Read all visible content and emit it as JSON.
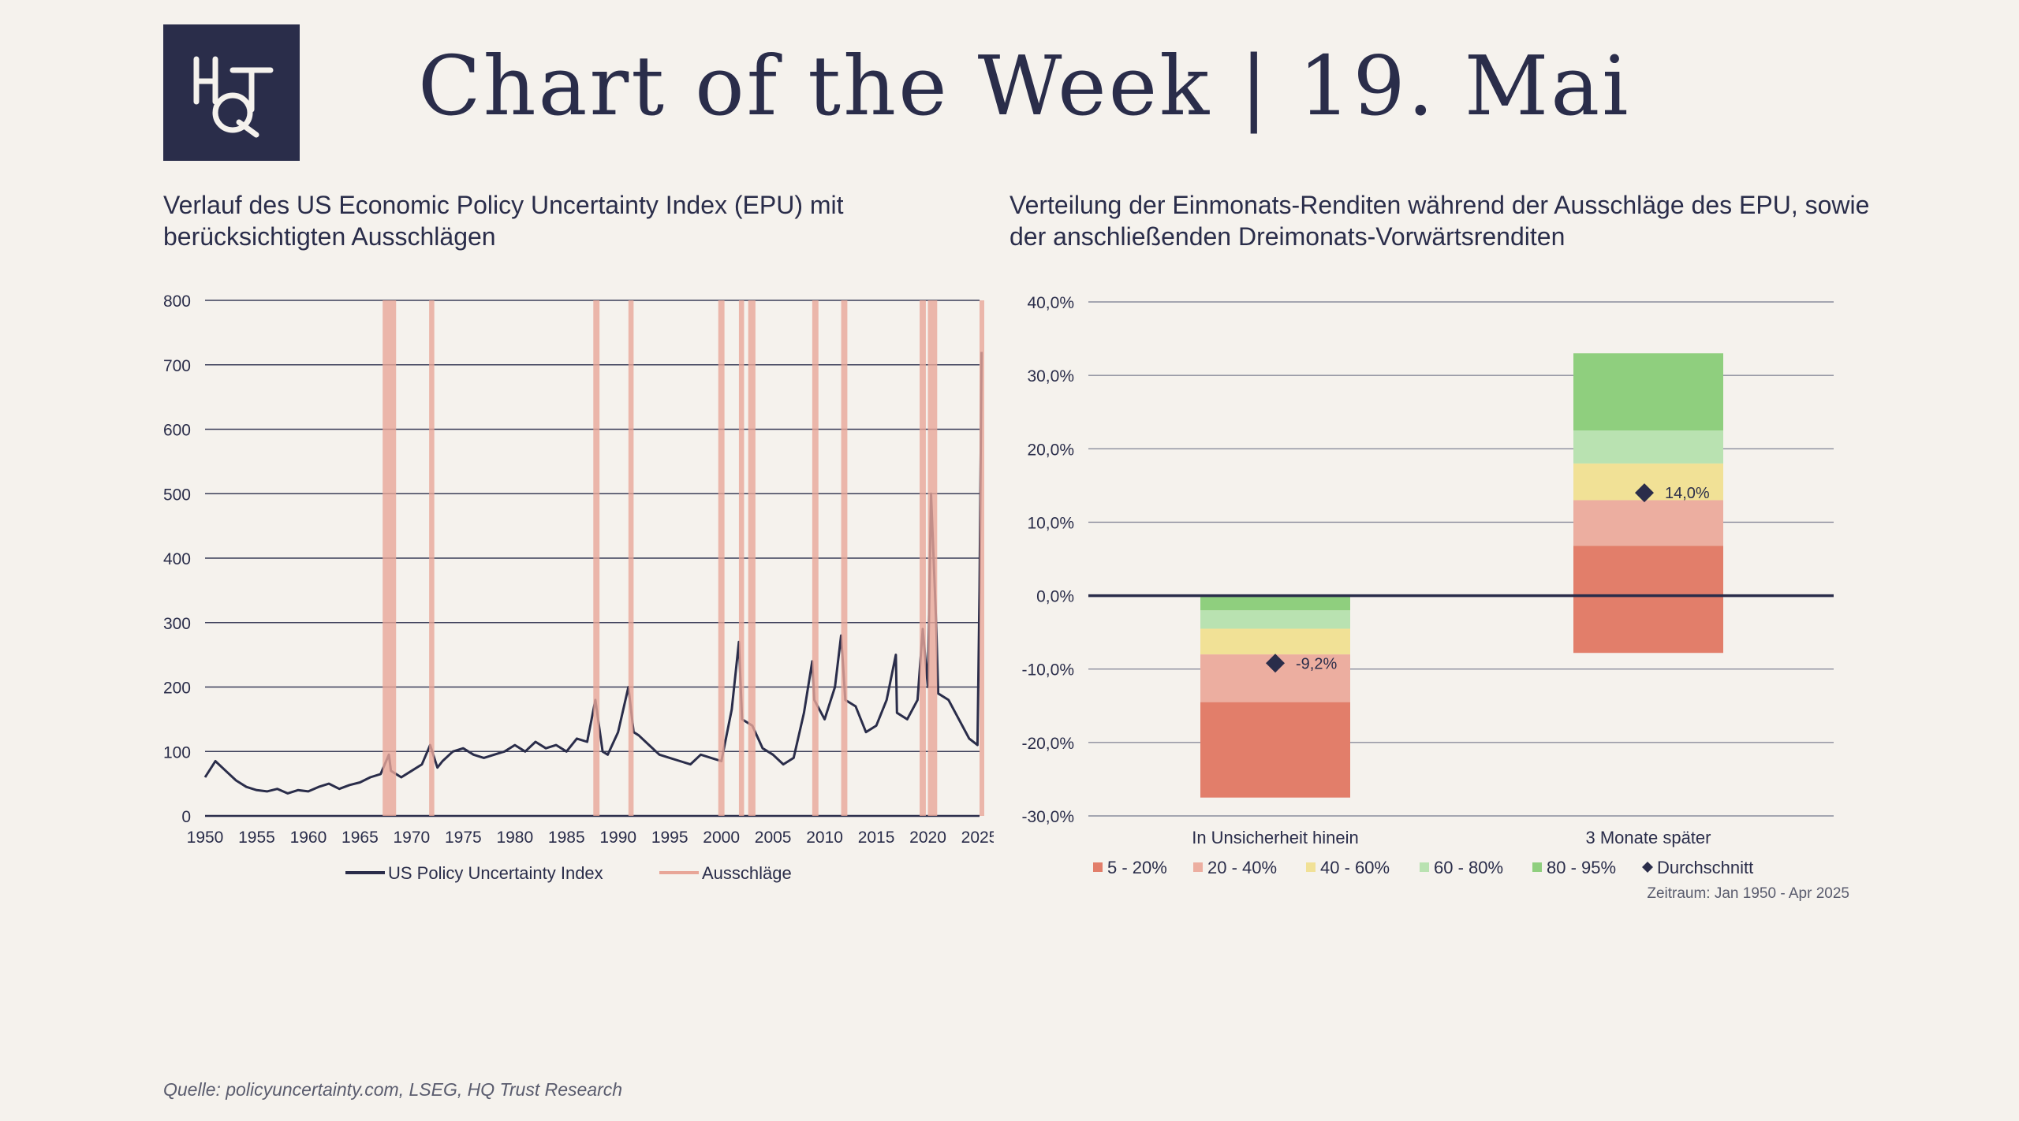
{
  "header": {
    "logo_text": "HQT",
    "title": "Chart of the Week | 19. Mai"
  },
  "left_panel": {
    "subtitle": "Verlauf des US Economic Policy Uncertainty Index (EPU) mit berücksichtigten Ausschlägen"
  },
  "right_panel": {
    "subtitle": "Verteilung der Einmonats-Renditen während der Ausschläge des EPU, sowie der anschließenden Dreimonats-Vorwärtsrenditen",
    "period_note": "Zeitraum: Jan 1950 - Apr 2025"
  },
  "footer": {
    "source": "Quelle: policyuncertainty.com, LSEG, HQ Trust Research"
  },
  "colors": {
    "navy": "#2a2d4a",
    "spike_band": "#e8a698",
    "band_5_20": "#e27e6a",
    "band_20_40": "#ecaea0",
    "band_40_60": "#f1e196",
    "band_60_80": "#b9e2b1",
    "band_80_95": "#8fcf7e",
    "background": "#f5f2ed"
  },
  "chart_data": [
    {
      "type": "line",
      "title": "",
      "ylim": [
        0,
        800
      ],
      "yticks": [
        0,
        100,
        200,
        300,
        400,
        500,
        600,
        700,
        800
      ],
      "xlim": [
        1950,
        2025
      ],
      "xticks": [
        1950,
        1955,
        1960,
        1965,
        1970,
        1975,
        1980,
        1985,
        1990,
        1995,
        2000,
        2005,
        2010,
        2015,
        2020,
        2025
      ],
      "grid": true,
      "legend": {
        "placement": "bottom",
        "entries": [
          "US Policy Uncertainty Index",
          "Ausschläge"
        ]
      },
      "series": [
        {
          "name": "US Policy Uncertainty Index",
          "x": [
            1950,
            1951,
            1952,
            1953,
            1954,
            1955,
            1956,
            1957,
            1958,
            1959,
            1960,
            1961,
            1962,
            1963,
            1964,
            1965,
            1966,
            1967,
            1967.8,
            1968,
            1969,
            1970,
            1971,
            1971.8,
            1972.5,
            1973,
            1974,
            1975,
            1976,
            1977,
            1978,
            1979,
            1980,
            1981,
            1982,
            1983,
            1984,
            1985,
            1986,
            1987,
            1987.8,
            1988.5,
            1989,
            1990,
            1991,
            1991.5,
            1992,
            1993,
            1994,
            1995,
            1996,
            1997,
            1998,
            1999,
            2000,
            2001,
            2001.7,
            2002,
            2003,
            2004,
            2005,
            2006,
            2007,
            2008,
            2008.8,
            2009,
            2010,
            2011,
            2011.6,
            2012,
            2013,
            2014,
            2015,
            2016,
            2016.9,
            2017,
            2018,
            2019,
            2019.5,
            2020,
            2020.3,
            2020.8,
            2021,
            2022,
            2023,
            2024,
            2024.8,
            2025,
            2025.2
          ],
          "values": [
            60,
            85,
            70,
            55,
            45,
            40,
            38,
            42,
            35,
            40,
            38,
            45,
            50,
            42,
            48,
            52,
            60,
            65,
            95,
            70,
            60,
            70,
            80,
            110,
            75,
            85,
            100,
            105,
            95,
            90,
            95,
            100,
            110,
            100,
            115,
            105,
            110,
            100,
            120,
            115,
            180,
            100,
            95,
            130,
            200,
            130,
            125,
            110,
            95,
            90,
            85,
            80,
            95,
            90,
            85,
            165,
            270,
            150,
            140,
            105,
            95,
            80,
            90,
            160,
            240,
            180,
            150,
            200,
            280,
            180,
            170,
            130,
            140,
            180,
            250,
            160,
            150,
            180,
            290,
            200,
            500,
            300,
            190,
            180,
            150,
            120,
            110,
            350,
            720
          ]
        }
      ],
      "spike_bands": [
        [
          1967.2,
          1968.5
        ],
        [
          1971.7,
          1972.2
        ],
        [
          1987.6,
          1988.2
        ],
        [
          1991.0,
          1991.5
        ],
        [
          1999.7,
          2000.3
        ],
        [
          2001.7,
          2002.2
        ],
        [
          2002.6,
          2003.3
        ],
        [
          2008.8,
          2009.4
        ],
        [
          2011.6,
          2012.2
        ],
        [
          2019.2,
          2019.8
        ],
        [
          2020.0,
          2020.9
        ],
        [
          2025.0,
          2025.4
        ]
      ]
    },
    {
      "type": "bar",
      "stacked_range": true,
      "title": "",
      "categories": [
        "In Unsicherheit hinein",
        "3 Monate später"
      ],
      "ylim": [
        -30,
        40
      ],
      "yticks": [
        -30,
        -20,
        -10,
        0,
        10,
        20,
        30,
        40
      ],
      "ytick_labels": [
        "-30,0%",
        "-20,0%",
        "-10,0%",
        "0,0%",
        "10,0%",
        "20,0%",
        "30,0%",
        "40,0%"
      ],
      "y_unit": "%",
      "legend": {
        "placement": "bottom",
        "entries": [
          "5 - 20%",
          "20 - 40%",
          "40 - 60%",
          "60 - 80%",
          "80 - 95%",
          "Durchschnitt"
        ]
      },
      "series": [
        {
          "name": "5 - 20%",
          "ranges": [
            [
              -27.5,
              -14.5
            ],
            [
              -7.8,
              6.8
            ]
          ]
        },
        {
          "name": "20 - 40%",
          "ranges": [
            [
              -14.5,
              -8.0
            ],
            [
              6.8,
              13.0
            ]
          ]
        },
        {
          "name": "40 - 60%",
          "ranges": [
            [
              -8.0,
              -4.5
            ],
            [
              13.0,
              18.0
            ]
          ]
        },
        {
          "name": "60 - 80%",
          "ranges": [
            [
              -4.5,
              -2.0
            ],
            [
              18.0,
              22.5
            ]
          ]
        },
        {
          "name": "80 - 95%",
          "ranges": [
            [
              -2.0,
              0.0
            ],
            [
              22.5,
              33.0
            ]
          ]
        },
        {
          "name": "Durchschnitt",
          "values": [
            -9.2,
            14.0
          ],
          "labels": [
            "-9,2%",
            "14,0%"
          ]
        }
      ]
    }
  ]
}
